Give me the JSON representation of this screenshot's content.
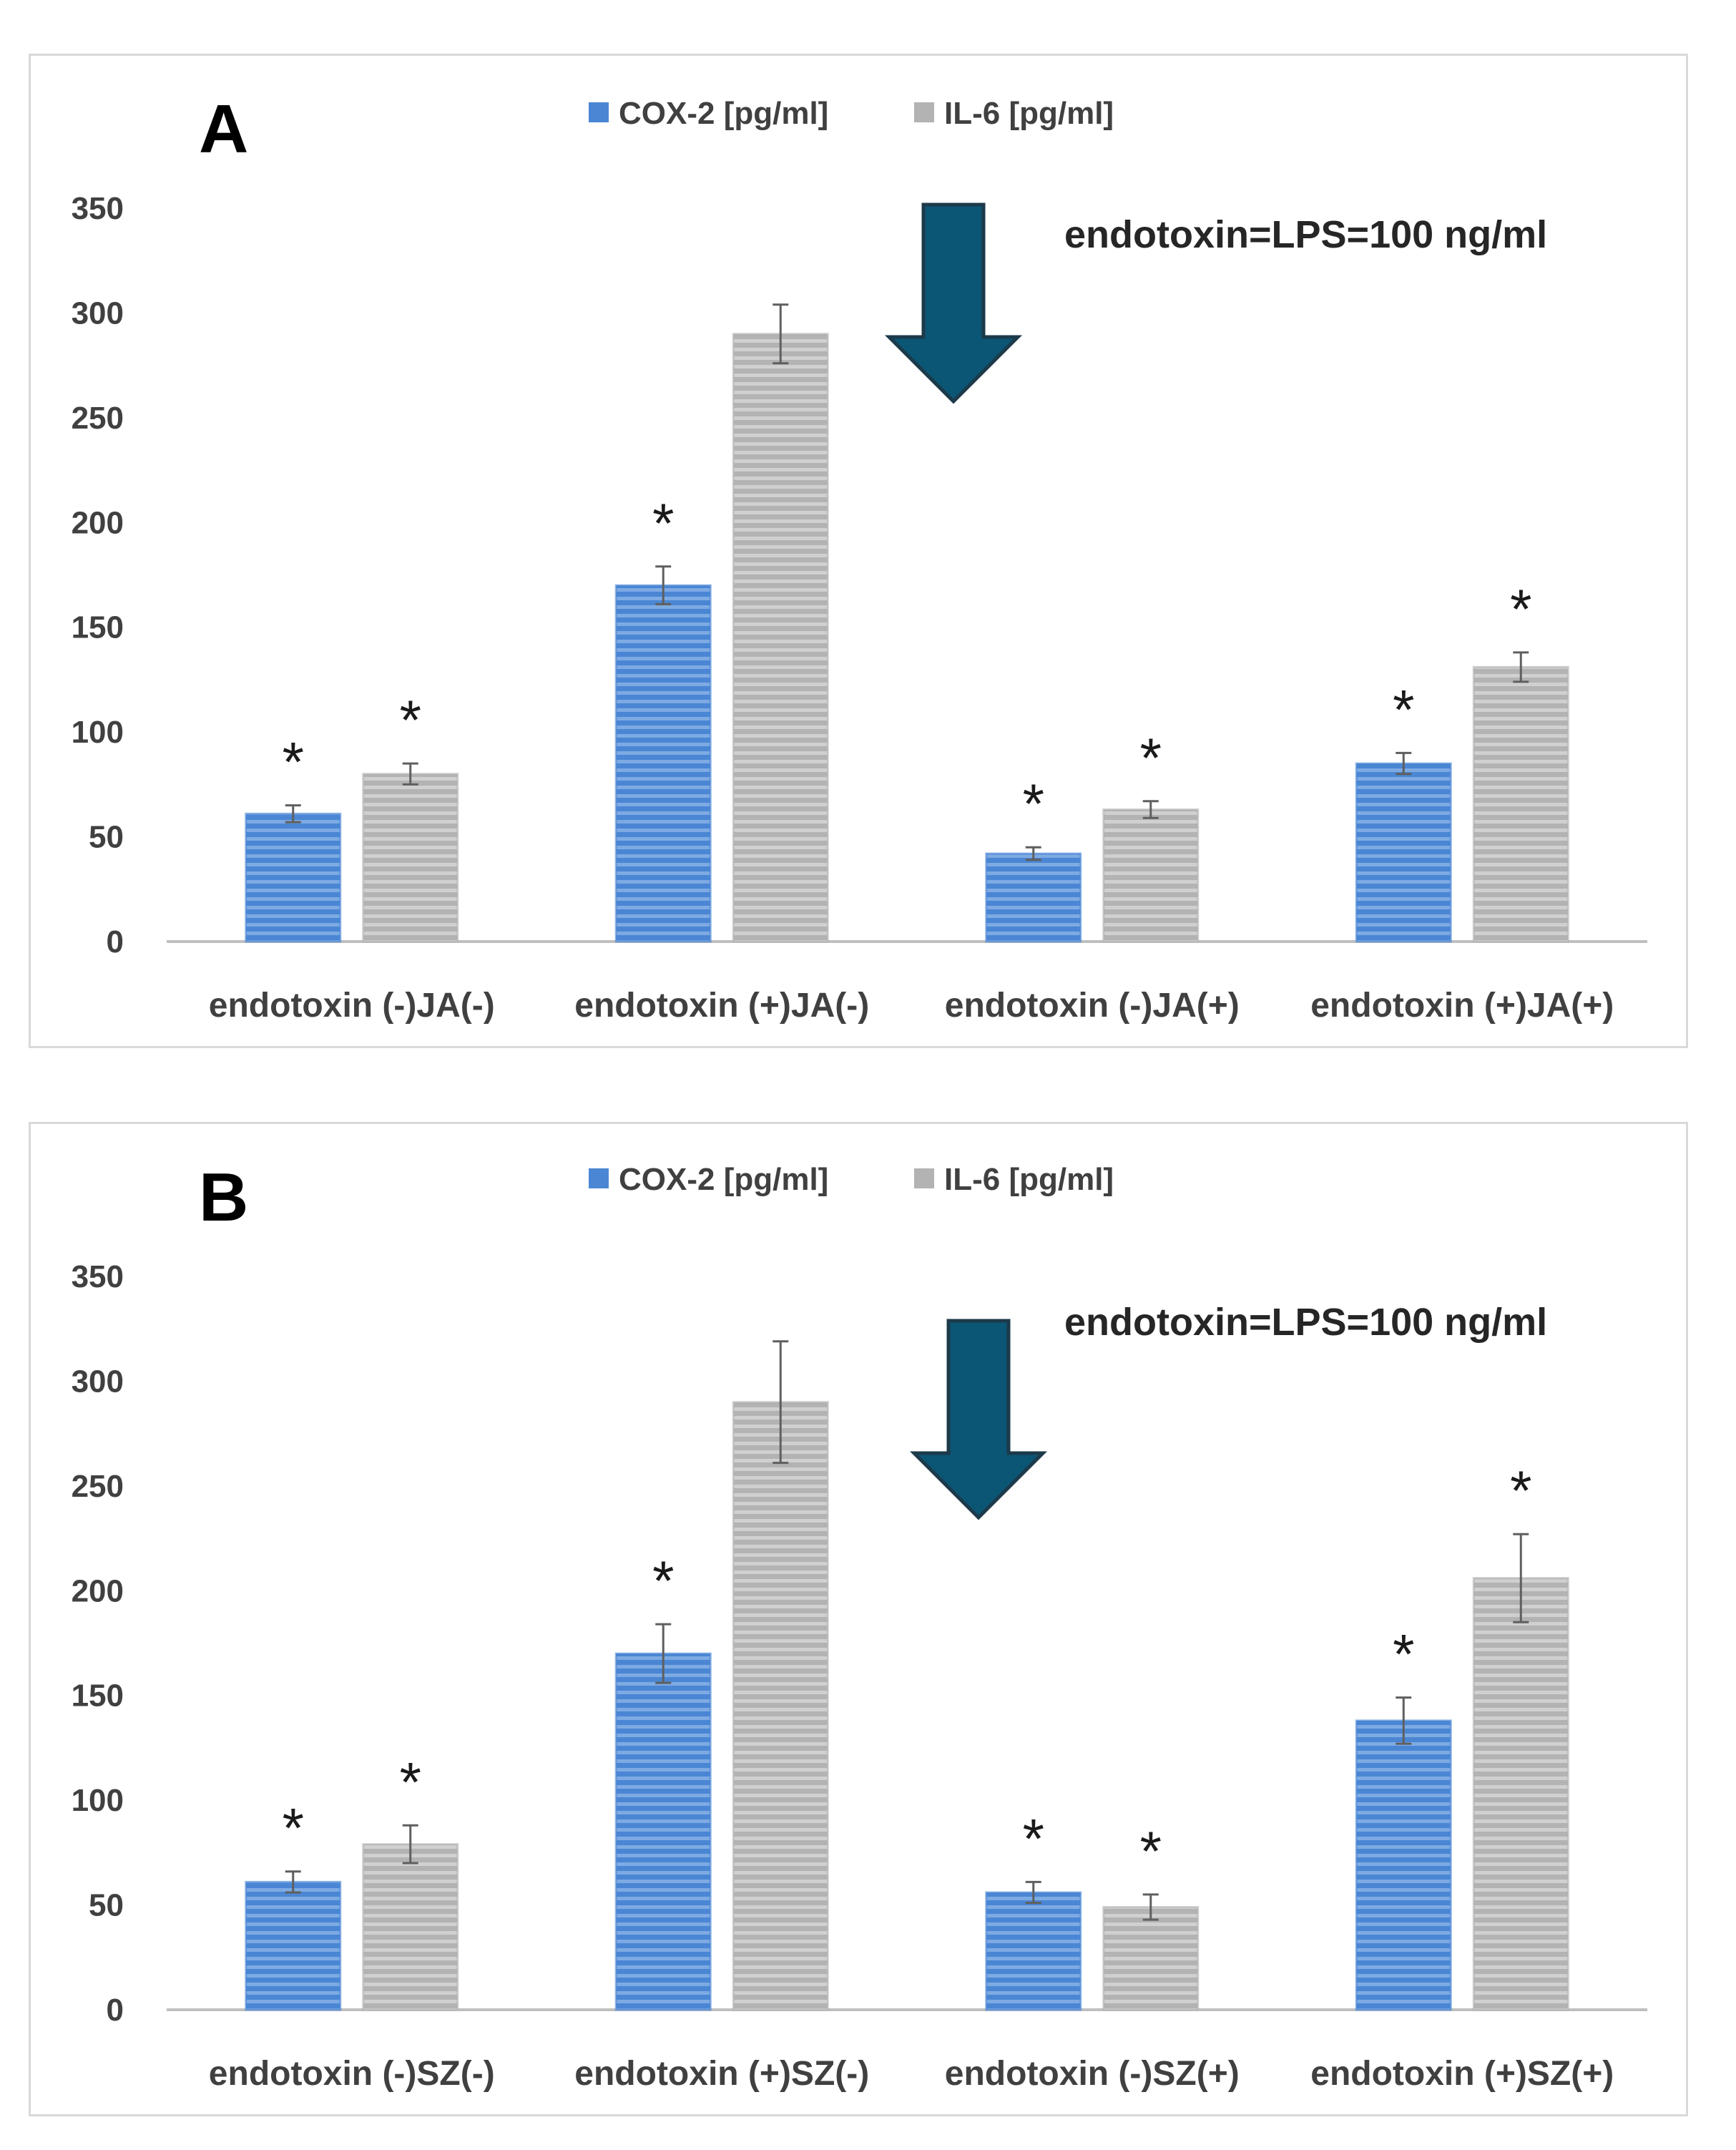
{
  "colors": {
    "cox2": "#4a86d4",
    "il6": "#b3b3b3",
    "axis": "#bfbfbf",
    "arrow": "#0b5575",
    "arrow_stroke": "#1c3a4a",
    "error": "#5f5f5f"
  },
  "chart_data": [
    {
      "type": "bar",
      "panel_label": "A",
      "title": "",
      "xlabel": "",
      "ylabel": "",
      "annotation": "endotoxin=LPS=100 ng/ml",
      "legend_position": "top-center",
      "ylim": [
        0,
        350
      ],
      "yticks": [
        "0",
        "50",
        "100",
        "150",
        "200",
        "250",
        "300",
        "350"
      ],
      "categories": [
        "endotoxin (-)JA(-)",
        "endotoxin (+)JA(-)",
        "endotoxin (-)JA(+)",
        "endotoxin (+)JA(+)"
      ],
      "series": [
        {
          "name": "COX-2 [pg/ml]",
          "values": [
            61,
            170,
            42,
            85
          ],
          "errors": [
            4,
            9,
            3,
            5
          ],
          "significant": [
            true,
            true,
            true,
            true
          ]
        },
        {
          "name": "IL-6 [pg/ml]",
          "values": [
            80,
            290,
            63,
            131
          ],
          "errors": [
            5,
            14,
            4,
            7
          ],
          "significant": [
            true,
            false,
            true,
            true
          ]
        }
      ],
      "significance_marker": "*"
    },
    {
      "type": "bar",
      "panel_label": "B",
      "title": "",
      "xlabel": "",
      "ylabel": "",
      "annotation": "endotoxin=LPS=100 ng/ml",
      "legend_position": "top-center",
      "ylim": [
        0,
        350
      ],
      "yticks": [
        "0",
        "50",
        "100",
        "150",
        "200",
        "250",
        "300",
        "350"
      ],
      "categories": [
        "endotoxin (-)SZ(-)",
        "endotoxin (+)SZ(-)",
        "endotoxin (-)SZ(+)",
        "endotoxin (+)SZ(+)"
      ],
      "series": [
        {
          "name": "COX-2 [pg/ml]",
          "values": [
            61,
            170,
            56,
            138
          ],
          "errors": [
            5,
            14,
            5,
            11
          ],
          "significant": [
            true,
            true,
            true,
            true
          ]
        },
        {
          "name": "IL-6 [pg/ml]",
          "values": [
            79,
            290,
            49,
            206
          ],
          "errors": [
            9,
            29,
            6,
            21
          ],
          "significant": [
            true,
            false,
            true,
            true
          ]
        }
      ],
      "significance_marker": "*"
    }
  ]
}
